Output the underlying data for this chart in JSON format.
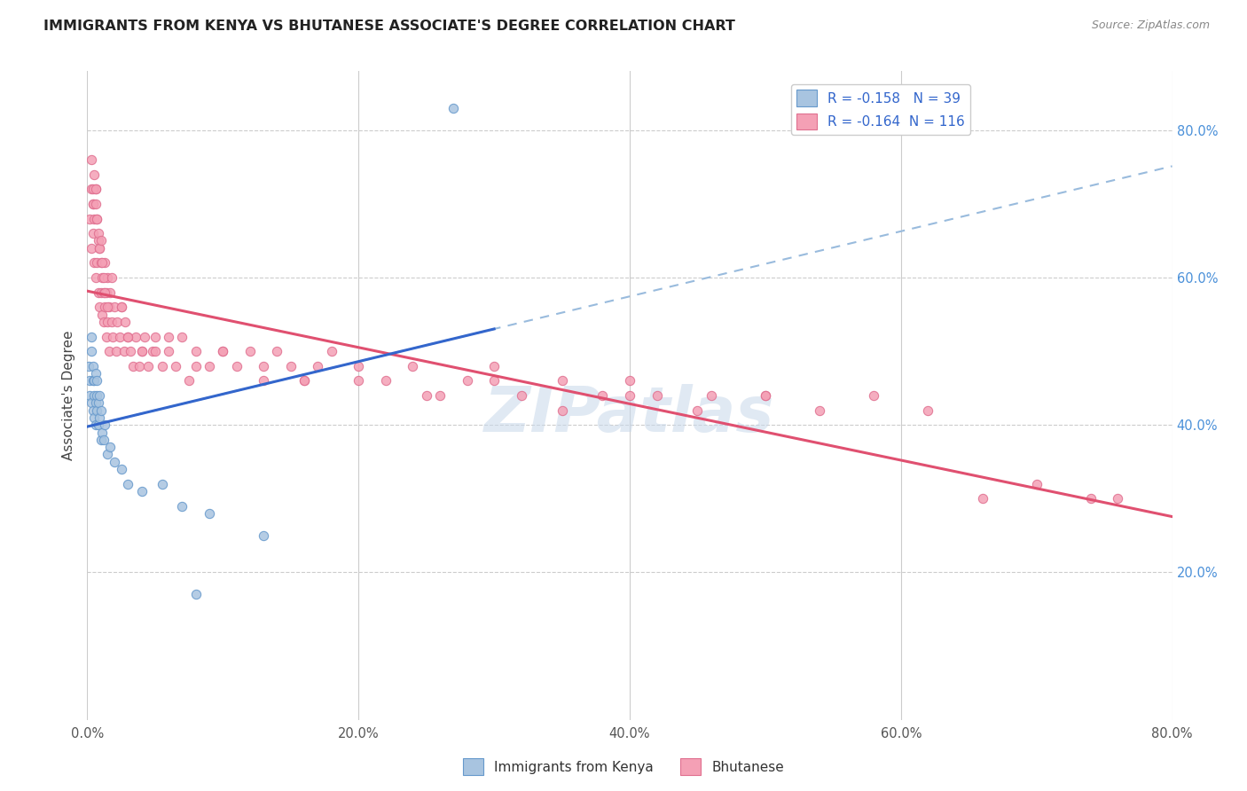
{
  "title": "IMMIGRANTS FROM KENYA VS BHUTANESE ASSOCIATE'S DEGREE CORRELATION CHART",
  "source": "Source: ZipAtlas.com",
  "ylabel": "Associate's Degree",
  "xlim": [
    0.0,
    0.8
  ],
  "ylim": [
    0.0,
    0.88
  ],
  "right_ytick_labels": [
    "20.0%",
    "40.0%",
    "60.0%",
    "80.0%"
  ],
  "right_ytick_values": [
    0.2,
    0.4,
    0.6,
    0.8
  ],
  "xtick_labels": [
    "0.0%",
    "20.0%",
    "40.0%",
    "60.0%",
    "80.0%"
  ],
  "xtick_values": [
    0.0,
    0.2,
    0.4,
    0.6,
    0.8
  ],
  "kenya_R": -0.158,
  "kenya_N": 39,
  "bhutan_R": -0.164,
  "bhutan_N": 116,
  "kenya_color": "#a8c4e0",
  "kenya_edge_color": "#6699cc",
  "bhutan_color": "#f4a0b5",
  "bhutan_edge_color": "#e07090",
  "kenya_line_color": "#3366cc",
  "bhutan_line_color": "#e05070",
  "kenya_dash_color": "#99bbdd",
  "watermark": "ZIPatlas",
  "background_color": "#ffffff",
  "grid_color": "#cccccc",
  "kenya_x": [
    0.001,
    0.002,
    0.002,
    0.003,
    0.003,
    0.003,
    0.004,
    0.004,
    0.004,
    0.005,
    0.005,
    0.005,
    0.006,
    0.006,
    0.006,
    0.007,
    0.007,
    0.007,
    0.008,
    0.008,
    0.009,
    0.009,
    0.01,
    0.01,
    0.011,
    0.012,
    0.013,
    0.015,
    0.017,
    0.02,
    0.025,
    0.03,
    0.04,
    0.055,
    0.07,
    0.09,
    0.13,
    0.27,
    0.08
  ],
  "kenya_y": [
    0.48,
    0.44,
    0.46,
    0.5,
    0.52,
    0.43,
    0.46,
    0.48,
    0.42,
    0.44,
    0.41,
    0.46,
    0.43,
    0.47,
    0.4,
    0.44,
    0.42,
    0.46,
    0.4,
    0.43,
    0.41,
    0.44,
    0.38,
    0.42,
    0.39,
    0.38,
    0.4,
    0.36,
    0.37,
    0.35,
    0.34,
    0.32,
    0.31,
    0.32,
    0.29,
    0.28,
    0.25,
    0.83,
    0.17
  ],
  "bhutan_x": [
    0.002,
    0.003,
    0.003,
    0.004,
    0.004,
    0.005,
    0.005,
    0.006,
    0.006,
    0.007,
    0.007,
    0.008,
    0.008,
    0.009,
    0.009,
    0.01,
    0.01,
    0.011,
    0.011,
    0.012,
    0.012,
    0.013,
    0.013,
    0.014,
    0.014,
    0.015,
    0.015,
    0.016,
    0.016,
    0.017,
    0.018,
    0.019,
    0.02,
    0.021,
    0.022,
    0.024,
    0.025,
    0.027,
    0.028,
    0.03,
    0.032,
    0.034,
    0.036,
    0.038,
    0.04,
    0.042,
    0.045,
    0.048,
    0.05,
    0.055,
    0.06,
    0.065,
    0.07,
    0.075,
    0.08,
    0.09,
    0.1,
    0.11,
    0.12,
    0.13,
    0.14,
    0.15,
    0.16,
    0.17,
    0.18,
    0.2,
    0.22,
    0.24,
    0.26,
    0.28,
    0.3,
    0.32,
    0.35,
    0.38,
    0.4,
    0.42,
    0.46,
    0.5,
    0.54,
    0.58,
    0.62,
    0.66,
    0.7,
    0.74,
    0.76,
    0.003,
    0.004,
    0.004,
    0.005,
    0.006,
    0.006,
    0.007,
    0.008,
    0.009,
    0.01,
    0.011,
    0.012,
    0.013,
    0.015,
    0.018,
    0.025,
    0.03,
    0.04,
    0.05,
    0.06,
    0.08,
    0.1,
    0.13,
    0.16,
    0.2,
    0.25,
    0.3,
    0.35,
    0.4,
    0.45,
    0.5
  ],
  "bhutan_y": [
    0.68,
    0.72,
    0.64,
    0.7,
    0.66,
    0.68,
    0.62,
    0.72,
    0.6,
    0.68,
    0.62,
    0.65,
    0.58,
    0.64,
    0.56,
    0.62,
    0.58,
    0.6,
    0.55,
    0.58,
    0.54,
    0.62,
    0.56,
    0.58,
    0.52,
    0.6,
    0.54,
    0.56,
    0.5,
    0.58,
    0.54,
    0.52,
    0.56,
    0.5,
    0.54,
    0.52,
    0.56,
    0.5,
    0.54,
    0.52,
    0.5,
    0.48,
    0.52,
    0.48,
    0.5,
    0.52,
    0.48,
    0.5,
    0.52,
    0.48,
    0.5,
    0.48,
    0.52,
    0.46,
    0.5,
    0.48,
    0.5,
    0.48,
    0.5,
    0.46,
    0.5,
    0.48,
    0.46,
    0.48,
    0.5,
    0.48,
    0.46,
    0.48,
    0.44,
    0.46,
    0.48,
    0.44,
    0.46,
    0.44,
    0.46,
    0.44,
    0.44,
    0.44,
    0.42,
    0.44,
    0.42,
    0.3,
    0.32,
    0.3,
    0.3,
    0.76,
    0.72,
    0.7,
    0.74,
    0.72,
    0.7,
    0.68,
    0.66,
    0.64,
    0.65,
    0.62,
    0.6,
    0.58,
    0.56,
    0.6,
    0.56,
    0.52,
    0.5,
    0.5,
    0.52,
    0.48,
    0.5,
    0.48,
    0.46,
    0.46,
    0.44,
    0.46,
    0.42,
    0.44,
    0.42,
    0.44
  ]
}
